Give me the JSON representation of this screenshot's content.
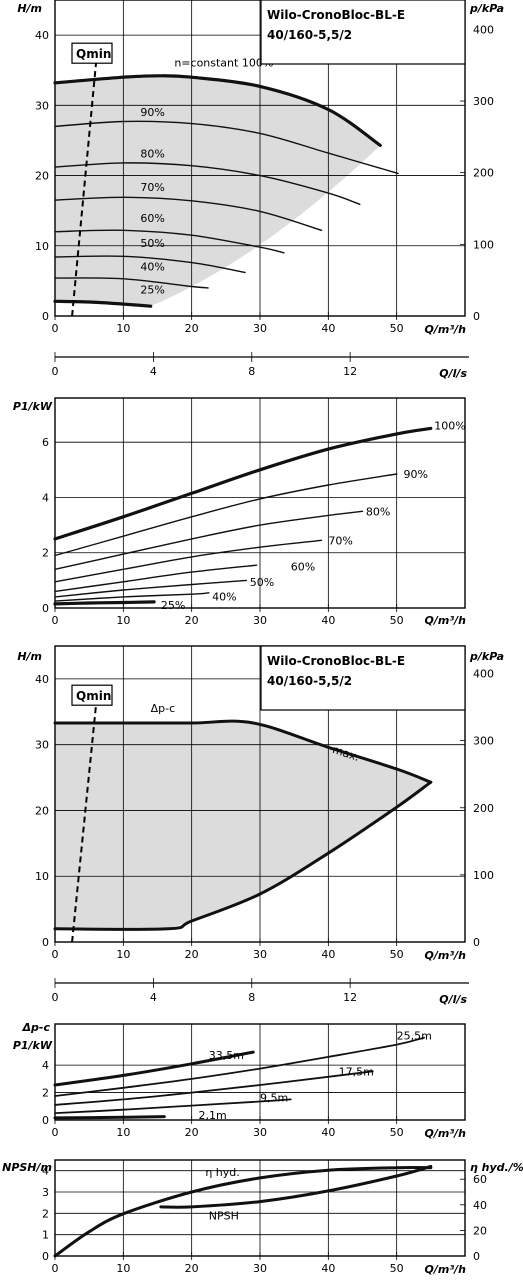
{
  "chart_data": [
    {
      "type": "line",
      "title": "Wilo-CronoBloc-BL-E",
      "subtitle": "40/160-5,5/2",
      "ylabel": "H/m",
      "ylabel_right": "p/kPa",
      "xlabel": "Q/m³/h",
      "xlim": [
        0,
        60
      ],
      "ylim": [
        0,
        45
      ],
      "ylim_right": [
        0,
        441
      ],
      "x_ticks": [
        "0",
        "10",
        "20",
        "30",
        "40",
        "50"
      ],
      "y_ticks": [
        "0",
        "10",
        "20",
        "30",
        "40"
      ],
      "y_right_ticks": [
        "0",
        "100",
        "200",
        "300",
        "400"
      ],
      "qmin_label": "Qmin",
      "qmin_line": [
        [
          2.5,
          0
        ],
        [
          6,
          36
        ]
      ],
      "grid": true,
      "series": [
        {
          "name": "n=constant 100%",
          "label": "n=constant 100%",
          "x": [
            0,
            10,
            15,
            20,
            30,
            40,
            47.6
          ],
          "y": [
            33.2,
            34.0,
            34.2,
            34.0,
            32.7,
            29.4,
            24.3
          ]
        },
        {
          "name": "90%",
          "label": "90%",
          "x": [
            0,
            10,
            20,
            30,
            40,
            50.2
          ],
          "y": [
            27.0,
            27.7,
            27.4,
            26.0,
            23.2,
            20.3
          ]
        },
        {
          "name": "80%",
          "label": "80%",
          "x": [
            0,
            10,
            20,
            30,
            40,
            44.6
          ],
          "y": [
            21.2,
            21.8,
            21.4,
            20.0,
            17.5,
            15.9
          ]
        },
        {
          "name": "70%",
          "label": "70%",
          "x": [
            0,
            10,
            20,
            30,
            39
          ],
          "y": [
            16.5,
            16.9,
            16.4,
            14.9,
            12.2
          ]
        },
        {
          "name": "60%",
          "label": "60%",
          "x": [
            0,
            10,
            20,
            30,
            33.5
          ],
          "y": [
            12.0,
            12.2,
            11.5,
            9.8,
            9.0
          ]
        },
        {
          "name": "50%",
          "label": "50%",
          "x": [
            0,
            10,
            20,
            27.8
          ],
          "y": [
            8.4,
            8.5,
            7.6,
            6.2
          ]
        },
        {
          "name": "40%",
          "label": "40%",
          "x": [
            0,
            10,
            20,
            22.4
          ],
          "y": [
            5.4,
            5.3,
            4.2,
            4.0
          ]
        },
        {
          "name": "25%",
          "label": "25%",
          "x": [
            0,
            5,
            10,
            14
          ],
          "y": [
            2.1,
            2.0,
            1.7,
            1.4
          ]
        }
      ],
      "shaded_region_upper": "n=constant 100%",
      "shaded_region_lower": "25%"
    },
    {
      "type": "axis",
      "xlabel": "Q/l/s",
      "xlim": [
        0,
        16.67
      ],
      "x_ticks": [
        "0",
        "4",
        "8",
        "12"
      ]
    },
    {
      "type": "line",
      "ylabel": "P1/kW",
      "xlabel": "Q/m³/h",
      "xlim": [
        0,
        60
      ],
      "ylim": [
        0,
        7.6
      ],
      "x_ticks": [
        "0",
        "10",
        "20",
        "30",
        "40",
        "50"
      ],
      "y_ticks": [
        "0",
        "2",
        "4",
        "6"
      ],
      "grid": true,
      "series": [
        {
          "name": "100%",
          "label": "100%",
          "x": [
            0,
            10,
            20,
            30,
            40,
            50,
            55
          ],
          "y": [
            2.5,
            3.3,
            4.15,
            5.0,
            5.75,
            6.3,
            6.5
          ]
        },
        {
          "name": "90%",
          "label": "90%",
          "x": [
            0,
            10,
            20,
            30,
            40,
            50
          ],
          "y": [
            1.9,
            2.6,
            3.3,
            3.95,
            4.45,
            4.85
          ]
        },
        {
          "name": "80%",
          "label": "80%",
          "x": [
            0,
            10,
            20,
            30,
            40,
            45
          ],
          "y": [
            1.4,
            1.95,
            2.5,
            3.0,
            3.35,
            3.5
          ]
        },
        {
          "name": "70%",
          "label": "70%",
          "x": [
            0,
            10,
            20,
            30,
            39
          ],
          "y": [
            0.95,
            1.4,
            1.85,
            2.2,
            2.45
          ]
        },
        {
          "name": "60%",
          "label": "60%",
          "x": [
            0,
            10,
            20,
            29.5
          ],
          "y": [
            0.6,
            0.95,
            1.3,
            1.55
          ]
        },
        {
          "name": "50%",
          "label": "50%",
          "x": [
            0,
            10,
            20,
            28
          ],
          "y": [
            0.4,
            0.65,
            0.85,
            1.0
          ]
        },
        {
          "name": "40%",
          "label": "40%",
          "x": [
            0,
            10,
            20,
            22.5
          ],
          "y": [
            0.25,
            0.4,
            0.5,
            0.55
          ]
        },
        {
          "name": "25%",
          "label": "25%",
          "x": [
            0,
            5,
            10,
            14.5
          ],
          "y": [
            0.15,
            0.18,
            0.2,
            0.22
          ]
        }
      ]
    },
    {
      "type": "area",
      "title": "Wilo-CronoBloc-BL-E",
      "subtitle": "40/160-5,5/2",
      "ylabel": "H/m",
      "ylabel_right": "p/kPa",
      "xlabel": "Q/m³/h",
      "xlim": [
        0,
        60
      ],
      "ylim": [
        0,
        45
      ],
      "ylim_right": [
        0,
        441
      ],
      "x_ticks": [
        "0",
        "10",
        "20",
        "30",
        "40",
        "50"
      ],
      "y_ticks": [
        "0",
        "10",
        "20",
        "30",
        "40"
      ],
      "y_right_ticks": [
        "0",
        "100",
        "200",
        "300",
        "400"
      ],
      "qmin_label": "Qmin",
      "qmin_line": [
        [
          2.5,
          0
        ],
        [
          6,
          36
        ]
      ],
      "grid": true,
      "upper_curve": {
        "label": "Δp-c",
        "x": [
          0,
          10,
          20,
          29,
          40,
          50,
          55
        ],
        "y": [
          33.3,
          33.3,
          33.3,
          33.3,
          29.6,
          26.3,
          24.3
        ]
      },
      "max_label": "max.",
      "lower_curve": {
        "x": [
          0,
          16.5,
          20,
          30,
          40,
          50,
          55
        ],
        "y": [
          2.0,
          2.0,
          3.2,
          7.3,
          13.5,
          20.5,
          24.3
        ]
      }
    },
    {
      "type": "axis",
      "xlabel": "Q/l/s",
      "xlim": [
        0,
        16.67
      ],
      "x_ticks": [
        "0",
        "4",
        "8",
        "12"
      ]
    },
    {
      "type": "line",
      "ylabel": "P1/kW",
      "ylabel_top": "Δp-c",
      "xlabel": "Q/m³/h",
      "xlim": [
        0,
        60
      ],
      "ylim": [
        0,
        7
      ],
      "x_ticks": [
        "0",
        "10",
        "20",
        "30",
        "40",
        "50"
      ],
      "y_ticks": [
        "0",
        "2",
        "4"
      ],
      "grid": true,
      "series": [
        {
          "label": "33,5m",
          "x": [
            0,
            10,
            20,
            29
          ],
          "y": [
            2.55,
            3.25,
            4.1,
            4.95
          ]
        },
        {
          "label": "25,5m",
          "x": [
            0,
            10,
            20,
            30,
            40,
            50,
            54
          ],
          "y": [
            1.75,
            2.35,
            3.0,
            3.75,
            4.6,
            5.5,
            6.0
          ]
        },
        {
          "label": "17,5m",
          "x": [
            0,
            10,
            20,
            30,
            40,
            46.5
          ],
          "y": [
            1.1,
            1.5,
            2.0,
            2.55,
            3.15,
            3.55
          ]
        },
        {
          "label": "9,5m",
          "x": [
            0,
            10,
            20,
            30,
            34.5
          ],
          "y": [
            0.5,
            0.75,
            1.05,
            1.35,
            1.5
          ]
        },
        {
          "label": "2,1m",
          "x": [
            0,
            10,
            16
          ],
          "y": [
            0.15,
            0.2,
            0.25
          ]
        }
      ]
    },
    {
      "type": "line",
      "ylabel": "NPSH/m",
      "ylabel_right": "η hyd./%",
      "xlabel": "Q/m³/h",
      "xlim": [
        0,
        60
      ],
      "ylim": [
        0,
        4.5
      ],
      "ylim_right": [
        0,
        75
      ],
      "x_ticks": [
        "0",
        "10",
        "20",
        "30",
        "40",
        "50"
      ],
      "y_ticks": [
        "0",
        "1",
        "2",
        "3",
        "4"
      ],
      "y_right_ticks": [
        "0",
        "20",
        "40",
        "60"
      ],
      "grid": true,
      "series": [
        {
          "name": "η hyd.",
          "label": "η hyd.",
          "axis": "right",
          "x": [
            0,
            5,
            10,
            20,
            30,
            40,
            50,
            55
          ],
          "y": [
            0,
            19,
            33,
            50,
            61,
            67,
            69,
            69
          ]
        },
        {
          "name": "NPSH",
          "label": "NPSH",
          "axis": "left",
          "x": [
            15.5,
            20,
            30,
            40,
            50,
            55
          ],
          "y": [
            2.3,
            2.3,
            2.55,
            3.05,
            3.75,
            4.2
          ]
        }
      ]
    }
  ]
}
